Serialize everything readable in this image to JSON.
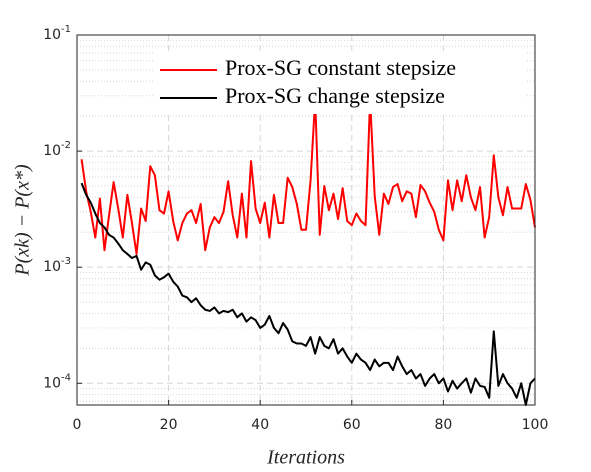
{
  "chart_data": {
    "type": "line",
    "xlabel": "Iterations",
    "ylabel": "P(xk) − P(x*)",
    "x": [
      1,
      2,
      3,
      4,
      5,
      6,
      7,
      8,
      9,
      10,
      11,
      12,
      13,
      14,
      15,
      16,
      17,
      18,
      19,
      20,
      21,
      22,
      23,
      24,
      25,
      26,
      27,
      28,
      29,
      30,
      31,
      32,
      33,
      34,
      35,
      36,
      37,
      38,
      39,
      40,
      41,
      42,
      43,
      44,
      45,
      46,
      47,
      48,
      49,
      50,
      51,
      52,
      53,
      54,
      55,
      56,
      57,
      58,
      59,
      60,
      61,
      62,
      63,
      64,
      65,
      66,
      67,
      68,
      69,
      70,
      71,
      72,
      73,
      74,
      75,
      76,
      77,
      78,
      79,
      80,
      81,
      82,
      83,
      84,
      85,
      86,
      87,
      88,
      89,
      90,
      91,
      92,
      93,
      94,
      95,
      96,
      97,
      98,
      99,
      100
    ],
    "series": [
      {
        "name": "Prox-SG constant stepsize",
        "color": "#ff0000",
        "values": [
          0.0085,
          0.0045,
          0.003,
          0.0018,
          0.0039,
          0.0014,
          0.0028,
          0.0054,
          0.0032,
          0.0018,
          0.0042,
          0.0024,
          0.0013,
          0.0032,
          0.0025,
          0.0074,
          0.0062,
          0.0031,
          0.0029,
          0.0045,
          0.0025,
          0.0017,
          0.0024,
          0.0029,
          0.0031,
          0.0024,
          0.0035,
          0.0014,
          0.0022,
          0.0027,
          0.0024,
          0.003,
          0.0055,
          0.0028,
          0.0018,
          0.0043,
          0.0018,
          0.0082,
          0.0032,
          0.0024,
          0.0036,
          0.0018,
          0.0042,
          0.0024,
          0.0024,
          0.0059,
          0.0049,
          0.0035,
          0.0021,
          0.0021,
          0.0056,
          0.028,
          0.0019,
          0.005,
          0.0031,
          0.0043,
          0.0026,
          0.0048,
          0.0025,
          0.0023,
          0.0029,
          0.0025,
          0.0023,
          0.028,
          0.0041,
          0.0019,
          0.0043,
          0.0035,
          0.0049,
          0.0052,
          0.0037,
          0.0045,
          0.0043,
          0.0027,
          0.0051,
          0.0045,
          0.0036,
          0.003,
          0.0021,
          0.0017,
          0.0056,
          0.0031,
          0.0056,
          0.0037,
          0.0062,
          0.004,
          0.0031,
          0.0049,
          0.0018,
          0.0027,
          0.0092,
          0.004,
          0.0028,
          0.0049,
          0.0032,
          0.0032,
          0.0032,
          0.0052,
          0.0038,
          0.0022
        ]
      },
      {
        "name": "Prox-SG change stepsize",
        "color": "#000000",
        "values": [
          0.0053,
          0.0042,
          0.0036,
          0.0029,
          0.0024,
          0.0022,
          0.0019,
          0.0018,
          0.0016,
          0.0014,
          0.0013,
          0.0012,
          0.00125,
          0.00095,
          0.0011,
          0.00105,
          0.00085,
          0.00078,
          0.00082,
          0.00088,
          0.00075,
          0.00068,
          0.00057,
          0.00055,
          0.0005,
          0.00054,
          0.00047,
          0.00043,
          0.00042,
          0.00045,
          0.0004,
          0.00042,
          0.00041,
          0.00043,
          0.00037,
          0.0004,
          0.00034,
          0.00037,
          0.00035,
          0.0003,
          0.00032,
          0.00038,
          0.0003,
          0.00027,
          0.00033,
          0.00029,
          0.00023,
          0.00022,
          0.00022,
          0.00021,
          0.00025,
          0.00018,
          0.00025,
          0.00021,
          0.0002,
          0.00024,
          0.00018,
          0.0002,
          0.00017,
          0.00015,
          0.00018,
          0.00016,
          0.00015,
          0.00013,
          0.00016,
          0.00014,
          0.00015,
          0.00015,
          0.00013,
          0.00017,
          0.00014,
          0.00012,
          0.00013,
          0.00011,
          0.00012,
          9.5e-05,
          0.00011,
          0.00012,
          0.0001,
          0.00011,
          8.5e-05,
          0.000105,
          9e-05,
          0.0001,
          0.00011,
          8.3e-05,
          0.00011,
          9.5e-05,
          9.3e-05,
          7.5e-05,
          0.00028,
          9.5e-05,
          0.00012,
          0.0001,
          9e-05,
          7.5e-05,
          0.0001,
          6.5e-05,
          0.0001,
          0.00011
        ]
      }
    ],
    "xlim": [
      0,
      100
    ],
    "xticks": [
      0,
      20,
      40,
      60,
      80,
      100
    ],
    "ylim": [
      6.5e-05,
      0.1
    ],
    "yticks": [
      {
        "value": 0.0001,
        "label": "10^{-4}"
      },
      {
        "value": 0.001,
        "label": "10^{-3}"
      },
      {
        "value": 0.01,
        "label": "10^{-2}"
      },
      {
        "value": 0.1,
        "label": "10^{-1}"
      }
    ],
    "yscale": "log",
    "grid": true,
    "legend": "upper right"
  }
}
